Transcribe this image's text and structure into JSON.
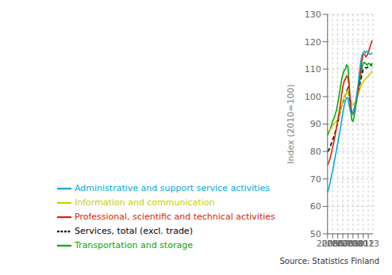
{
  "chart_data": {
    "type": "line",
    "ylabel": "Index (2010=100)",
    "source": "Source: Statistics Finland",
    "xlim": [
      2005.0,
      2013.92
    ],
    "ylim": [
      50,
      130
    ],
    "yticks": [
      50,
      60,
      70,
      80,
      90,
      100,
      110,
      120,
      130
    ],
    "xticks": [
      2005,
      2006,
      2007,
      2008,
      2009,
      2010,
      2011,
      2012,
      2013
    ],
    "grid": true,
    "legend": "bottom",
    "x": [
      2005.0,
      2005.25,
      2005.5,
      2005.75,
      2006.0,
      2006.25,
      2006.5,
      2006.75,
      2007.0,
      2007.25,
      2007.5,
      2007.75,
      2008.0,
      2008.25,
      2008.5,
      2008.75,
      2009.0,
      2009.25,
      2009.5,
      2009.75,
      2010.0,
      2010.25,
      2010.5,
      2010.75,
      2011.0,
      2011.25,
      2011.5,
      2011.75,
      2012.0,
      2012.25,
      2012.5,
      2012.75,
      2013.0,
      2013.25,
      2013.5,
      2013.75
    ],
    "series": [
      {
        "name": "Services, total (excl. trade)",
        "color": "#000000",
        "line_style": "dashed",
        "values": [
          80.0,
          80.5,
          81.5,
          83.0,
          84.0,
          85.5,
          87.0,
          88.5,
          90.5,
          92.5,
          94.5,
          96.5,
          98.0,
          99.0,
          100.5,
          102.0,
          103.0,
          100.0,
          96.5,
          94.0,
          94.5,
          95.5,
          97.0,
          99.0,
          101.0,
          103.5,
          106.0,
          108.0,
          110.0,
          110.5,
          110.5,
          110.5,
          111.0,
          111.0,
          111.5,
          112.0
        ]
      },
      {
        "name": "Transportation and storage",
        "color": "#00aa00",
        "line_style": "solid",
        "values": [
          86.0,
          87.0,
          88.0,
          89.5,
          91.0,
          92.0,
          93.5,
          95.0,
          97.5,
          100.0,
          103.0,
          106.0,
          108.0,
          109.5,
          110.0,
          111.5,
          111.0,
          104.0,
          96.0,
          91.5,
          91.0,
          93.0,
          96.0,
          99.0,
          102.0,
          105.0,
          108.0,
          110.5,
          112.0,
          112.5,
          112.0,
          111.5,
          112.0,
          112.0,
          111.5,
          111.0
        ]
      },
      {
        "name": "Information and communication",
        "color": "#cccc00",
        "line_style": "solid",
        "values": [
          87.0,
          87.5,
          88.0,
          88.5,
          89.5,
          90.0,
          90.5,
          91.0,
          91.5,
          92.5,
          94.0,
          96.5,
          98.5,
          99.5,
          100.5,
          101.5,
          102.5,
          101.0,
          99.0,
          97.5,
          97.0,
          97.5,
          98.0,
          99.0,
          100.5,
          102.0,
          103.5,
          104.5,
          105.5,
          106.0,
          106.5,
          107.0,
          107.5,
          108.0,
          108.5,
          109.5
        ]
      },
      {
        "name": "Professional, scientific and technical activities",
        "color": "#dd2200",
        "line_style": "solid",
        "values": [
          75.0,
          76.0,
          77.5,
          79.5,
          81.5,
          83.5,
          86.0,
          88.5,
          91.5,
          94.0,
          97.0,
          100.5,
          103.5,
          105.5,
          106.5,
          107.5,
          107.0,
          103.5,
          98.0,
          94.0,
          94.0,
          95.5,
          97.5,
          99.5,
          102.0,
          105.5,
          109.5,
          113.0,
          115.5,
          115.5,
          114.5,
          115.0,
          116.0,
          117.5,
          119.0,
          120.5
        ]
      },
      {
        "name": "Administrative and support service activities",
        "color": "#00aadd",
        "line_style": "solid",
        "values": [
          65.0,
          66.5,
          68.5,
          71.0,
          73.0,
          75.5,
          78.0,
          80.5,
          83.0,
          85.5,
          88.0,
          91.0,
          94.0,
          96.5,
          98.5,
          99.5,
          99.5,
          97.0,
          94.5,
          93.5,
          93.5,
          95.5,
          98.0,
          101.0,
          104.5,
          108.5,
          112.5,
          115.0,
          116.0,
          116.5,
          116.0,
          116.5,
          116.0,
          115.5,
          115.5,
          116.0
        ]
      }
    ]
  }
}
